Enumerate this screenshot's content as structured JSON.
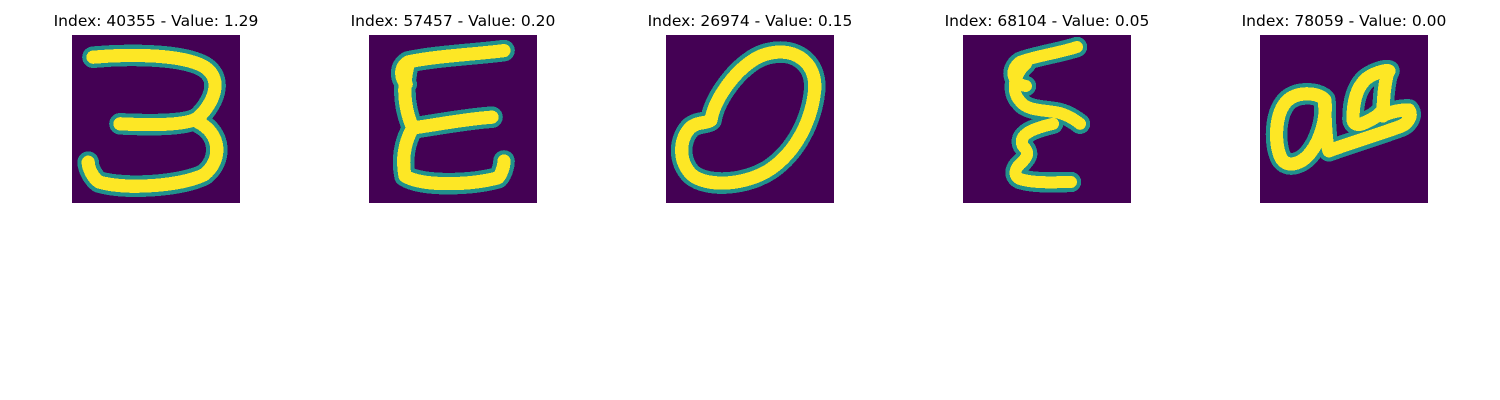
{
  "panels": [
    {
      "title": "Index: 40355 - Value: 1.29",
      "glyph": "digit-3"
    },
    {
      "title": "Index: 57457 - Value: 0.20",
      "glyph": "letter-E"
    },
    {
      "title": "Index: 26974 - Value: 0.15",
      "glyph": "digit-0"
    },
    {
      "title": "Index: 68104 - Value: 0.05",
      "glyph": "letter-Epsilon"
    },
    {
      "title": "Index: 78059 - Value: 0.00",
      "glyph": "letters-aa"
    }
  ],
  "colors": {
    "background": "#440154",
    "edge": "#21918c",
    "mid": "#5ec962",
    "stroke": "#fde725"
  }
}
